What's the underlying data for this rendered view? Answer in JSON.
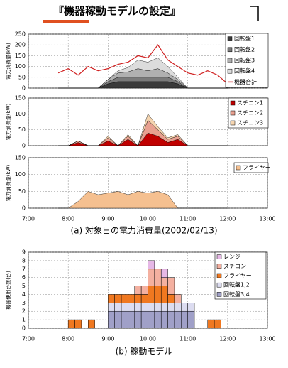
{
  "title": "『機器稼動モデルの設定』",
  "chart_data": [
    {
      "type": "area",
      "ylabel": "電力消費量(kW)",
      "x": [
        465,
        480,
        495,
        510,
        525,
        540,
        555,
        570,
        585,
        600,
        615,
        630,
        645,
        660,
        675,
        690,
        705,
        720
      ],
      "xlim": [
        420,
        780
      ],
      "xticks": [
        420,
        480,
        540,
        600,
        660,
        720,
        780
      ],
      "ylim": [
        0,
        250
      ],
      "yticks": [
        0,
        50,
        100,
        150,
        200,
        250
      ],
      "series": [
        {
          "name": "回転盤1",
          "color": "#3a3a3a",
          "values": [
            0,
            0,
            0,
            0,
            0,
            20,
            30,
            30,
            30,
            30,
            30,
            30,
            20,
            0,
            0,
            0,
            0,
            0
          ]
        },
        {
          "name": "回転盤2",
          "color": "#7a7a7a",
          "values": [
            0,
            0,
            0,
            0,
            0,
            10,
            20,
            20,
            20,
            20,
            20,
            20,
            10,
            0,
            0,
            0,
            0,
            0
          ]
        },
        {
          "name": "回転盤3",
          "color": "#b0b0b0",
          "values": [
            0,
            0,
            0,
            0,
            0,
            10,
            20,
            25,
            40,
            30,
            40,
            20,
            10,
            0,
            0,
            0,
            0,
            0
          ]
        },
        {
          "name": "回転盤4",
          "color": "#dcdcdc",
          "values": [
            0,
            0,
            0,
            0,
            0,
            0,
            10,
            20,
            40,
            40,
            50,
            30,
            10,
            0,
            0,
            0,
            0,
            0
          ]
        },
        {
          "name": "機器合計",
          "color": "#d02020",
          "type": "line",
          "values": [
            70,
            90,
            60,
            100,
            80,
            90,
            110,
            120,
            150,
            140,
            200,
            130,
            100,
            70,
            60,
            80,
            60,
            20
          ]
        }
      ]
    },
    {
      "type": "area",
      "ylabel": "電力消費量(kW)",
      "x": [
        465,
        480,
        495,
        510,
        525,
        540,
        555,
        570,
        585,
        600,
        615,
        630,
        645,
        660,
        675,
        690,
        705,
        720
      ],
      "xlim": [
        420,
        780
      ],
      "xticks": [
        420,
        480,
        540,
        600,
        660,
        720,
        780
      ],
      "ylim": [
        0,
        150
      ],
      "yticks": [
        0,
        50,
        100,
        150
      ],
      "series": [
        {
          "name": "スチコン1",
          "color": "#c00000",
          "values": [
            0,
            0,
            10,
            0,
            0,
            15,
            0,
            20,
            0,
            40,
            30,
            10,
            20,
            0,
            0,
            0,
            0,
            0
          ]
        },
        {
          "name": "スチコン2",
          "color": "#e8a090",
          "values": [
            0,
            0,
            5,
            0,
            0,
            10,
            0,
            10,
            0,
            40,
            20,
            10,
            10,
            0,
            0,
            0,
            0,
            0
          ]
        },
        {
          "name": "スチコン3",
          "color": "#f5d5b0",
          "values": [
            0,
            0,
            0,
            0,
            0,
            5,
            0,
            5,
            0,
            20,
            10,
            5,
            5,
            0,
            0,
            0,
            0,
            0
          ]
        }
      ]
    },
    {
      "type": "area",
      "ylabel": "電力消費量(kW)",
      "caption": "(a) 対象日の電力消費量(2002/02/13)",
      "x": [
        465,
        480,
        495,
        510,
        525,
        540,
        555,
        570,
        585,
        600,
        615,
        630,
        645,
        660,
        675,
        690,
        705,
        720
      ],
      "xlim": [
        420,
        780
      ],
      "xticks": [
        {
          "value": 420,
          "label": "7:00"
        },
        {
          "value": 480,
          "label": "8:00"
        },
        {
          "value": 540,
          "label": "9:00"
        },
        {
          "value": 600,
          "label": "10:00"
        },
        {
          "value": 660,
          "label": "11:00"
        },
        {
          "value": 720,
          "label": "12:00"
        },
        {
          "value": 780,
          "label": "13:00"
        }
      ],
      "ylim": [
        0,
        150
      ],
      "yticks": [
        0,
        50,
        100,
        150
      ],
      "series": [
        {
          "name": "フライヤー",
          "color": "#f5c090",
          "values": [
            0,
            0,
            20,
            50,
            40,
            45,
            50,
            40,
            50,
            45,
            50,
            40,
            0,
            0,
            0,
            0,
            0,
            0
          ]
        }
      ]
    },
    {
      "type": "histogram",
      "ylabel": "機器使用台数(台)",
      "caption": "(b) 稼動モデル",
      "bins": [
        480,
        490,
        500,
        510,
        520,
        530,
        540,
        550,
        560,
        570,
        580,
        590,
        600,
        610,
        620,
        630,
        640,
        650,
        660,
        670,
        680,
        690,
        700,
        710,
        720
      ],
      "xlim": [
        420,
        780
      ],
      "xticks": [
        {
          "value": 420,
          "label": "7:00"
        },
        {
          "value": 480,
          "label": "8:00"
        },
        {
          "value": 540,
          "label": "9:00"
        },
        {
          "value": 600,
          "label": "10:00"
        },
        {
          "value": 660,
          "label": "11:00"
        },
        {
          "value": 720,
          "label": "12:00"
        },
        {
          "value": 780,
          "label": "13:00"
        }
      ],
      "ylim": [
        0,
        9
      ],
      "yticks": [
        0,
        1,
        2,
        3,
        4,
        5,
        6,
        7,
        8,
        9
      ],
      "series": [
        {
          "name": "回転盤3,4",
          "color": "#a0a0c8",
          "values": [
            0,
            0,
            0,
            0,
            0,
            0,
            2,
            2,
            2,
            2,
            2,
            2,
            2,
            2,
            2,
            2,
            2,
            2,
            2,
            0,
            0,
            0,
            0,
            0
          ]
        },
        {
          "name": "回転盤1,2",
          "color": "#dcdcf0",
          "values": [
            0,
            0,
            0,
            0,
            0,
            0,
            1,
            1,
            1,
            1,
            1,
            1,
            1,
            1,
            1,
            1,
            1,
            1,
            1,
            0,
            0,
            0,
            0,
            0
          ]
        },
        {
          "name": "フライヤー",
          "color": "#f07820",
          "values": [
            1,
            1,
            0,
            1,
            0,
            0,
            1,
            1,
            1,
            1,
            1,
            1,
            2,
            2,
            2,
            1,
            0,
            0,
            0,
            0,
            0,
            1,
            1,
            0
          ]
        },
        {
          "name": "スチコン",
          "color": "#f4b0a0",
          "values": [
            0,
            0,
            0,
            0,
            0,
            0,
            0,
            0,
            0,
            0,
            1,
            1,
            2,
            2,
            1,
            2,
            1,
            0,
            0,
            0,
            0,
            0,
            0,
            0
          ]
        },
        {
          "name": "レンジ",
          "color": "#e6b8e6",
          "values": [
            0,
            0,
            0,
            0,
            0,
            0,
            0,
            0,
            0,
            0,
            0,
            0,
            1,
            0,
            1,
            0,
            0,
            0,
            0,
            0,
            0,
            0,
            0,
            0
          ]
        }
      ]
    }
  ]
}
